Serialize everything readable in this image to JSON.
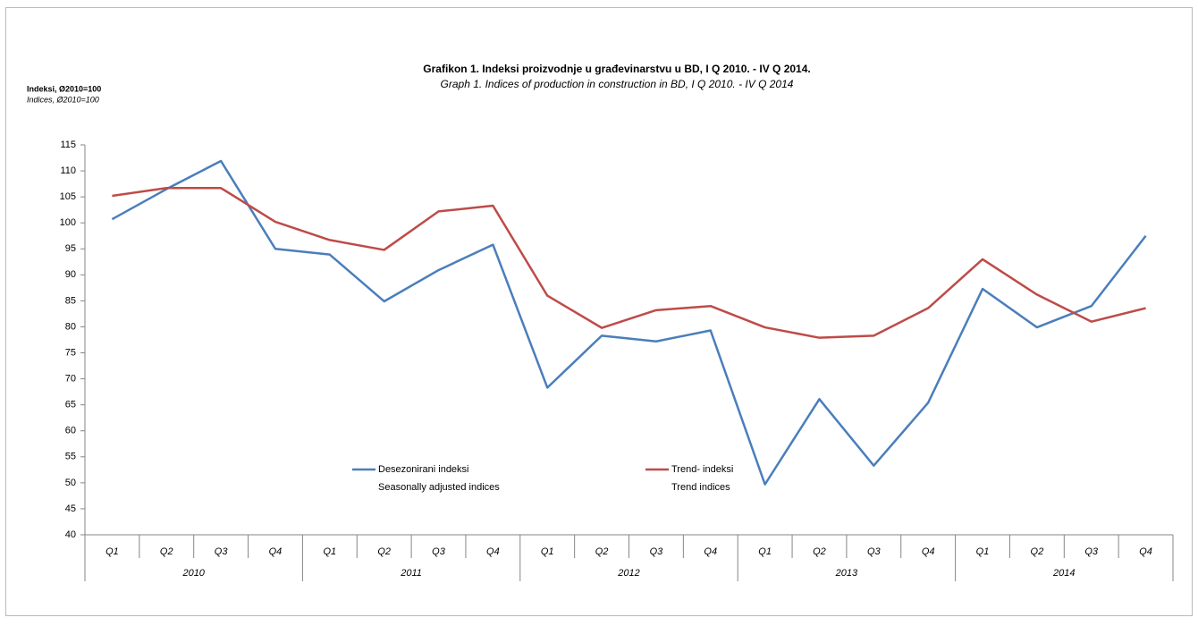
{
  "chart_data": {
    "type": "line",
    "title": "Grafikon 1. Indeksi proizvodnje u građevinarstvu u BD, I Q 2010. - IV Q 2014.",
    "subtitle": "Graph 1. Indices of production in construction in BD, I Q 2010. - IV Q 2014",
    "y_label": "Indeksi, Ø2010=100",
    "y_label_en": "Indices, Ø2010=100",
    "categories": [
      "Q1",
      "Q2",
      "Q3",
      "Q4",
      "Q1",
      "Q2",
      "Q3",
      "Q4",
      "Q1",
      "Q2",
      "Q3",
      "Q4",
      "Q1",
      "Q2",
      "Q3",
      "Q4",
      "Q1",
      "Q2",
      "Q3",
      "Q4"
    ],
    "years": [
      "2010",
      "2011",
      "2012",
      "2013",
      "2014"
    ],
    "series": [
      {
        "name": "Desezonirani indeksi",
        "name_en": "Seasonally adjusted indices",
        "color": "#4a7ebb",
        "values": [
          100.7,
          106.5,
          111.9,
          95,
          93.9,
          84.9,
          90.9,
          95.8,
          68.3,
          78.3,
          77.2,
          79.3,
          49.7,
          66.1,
          53.3,
          65.4,
          87.3,
          79.9,
          84,
          97.5
        ]
      },
      {
        "name": "Trend- indeksi",
        "name_en": "Trend indices",
        "color": "#be4b48",
        "values": [
          105.2,
          106.7,
          106.7,
          100.2,
          96.7,
          94.8,
          102.2,
          103.3,
          86,
          79.8,
          83.2,
          84,
          79.9,
          77.9,
          78.3,
          83.6,
          93,
          86.2,
          81,
          83.6
        ]
      }
    ],
    "ylim": [
      40,
      115
    ],
    "yticks": [
      40,
      45,
      50,
      55,
      60,
      65,
      70,
      75,
      80,
      85,
      90,
      95,
      100,
      105,
      110,
      115
    ],
    "grid": false
  }
}
